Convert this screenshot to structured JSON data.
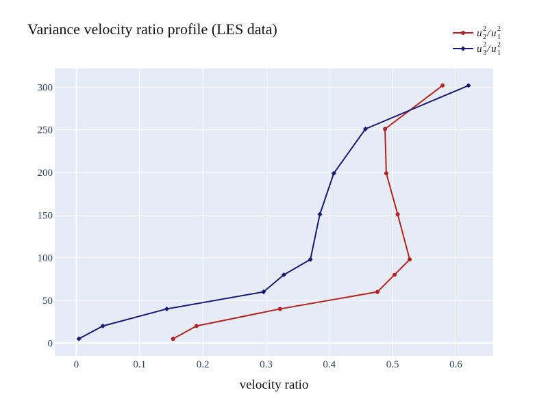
{
  "chart_data": {
    "type": "line",
    "title": "Variance velocity ratio profile (LES data)",
    "xlabel": "velocity ratio",
    "ylabel": "",
    "xlim": [
      -0.034,
      0.659
    ],
    "ylim": [
      -15,
      322
    ],
    "xticks": [
      "0",
      "0.1",
      "0.2",
      "0.3",
      "0.4",
      "0.5",
      "0.6"
    ],
    "xtick_values": [
      0,
      0.1,
      0.2,
      0.3,
      0.4,
      0.5,
      0.6
    ],
    "yticks": [
      "0",
      "50",
      "100",
      "150",
      "200",
      "250",
      "300"
    ],
    "ytick_values": [
      0,
      50,
      100,
      150,
      200,
      250,
      300
    ],
    "grid": true,
    "legend_position": "top-right",
    "colors": {
      "plot_bg": "#e5ecf6",
      "grid": "#ffffff"
    },
    "series": [
      {
        "name": "u2²/u1²",
        "legend": {
          "base1": "u",
          "sup1": "2",
          "sub1": "2",
          "base2": "u",
          "sup2": "2",
          "sub2": "1"
        },
        "color": "#b22222",
        "marker": "circle",
        "points": [
          {
            "x": 0.153,
            "y": 5
          },
          {
            "x": 0.19,
            "y": 20
          },
          {
            "x": 0.322,
            "y": 40
          },
          {
            "x": 0.476,
            "y": 60
          },
          {
            "x": 0.503,
            "y": 80
          },
          {
            "x": 0.527,
            "y": 98
          },
          {
            "x": 0.508,
            "y": 151
          },
          {
            "x": 0.49,
            "y": 199
          },
          {
            "x": 0.488,
            "y": 251
          },
          {
            "x": 0.579,
            "y": 302
          }
        ]
      },
      {
        "name": "u3²/u1²",
        "legend": {
          "base1": "u",
          "sup1": "2",
          "sub1": "3",
          "base2": "u",
          "sup2": "2",
          "sub2": "1"
        },
        "color": "#191970",
        "marker": "diamond",
        "points": [
          {
            "x": 0.004,
            "y": 5
          },
          {
            "x": 0.042,
            "y": 20
          },
          {
            "x": 0.143,
            "y": 40
          },
          {
            "x": 0.296,
            "y": 60
          },
          {
            "x": 0.328,
            "y": 80
          },
          {
            "x": 0.37,
            "y": 98
          },
          {
            "x": 0.385,
            "y": 151
          },
          {
            "x": 0.407,
            "y": 199
          },
          {
            "x": 0.457,
            "y": 251
          },
          {
            "x": 0.62,
            "y": 302
          }
        ]
      }
    ]
  }
}
